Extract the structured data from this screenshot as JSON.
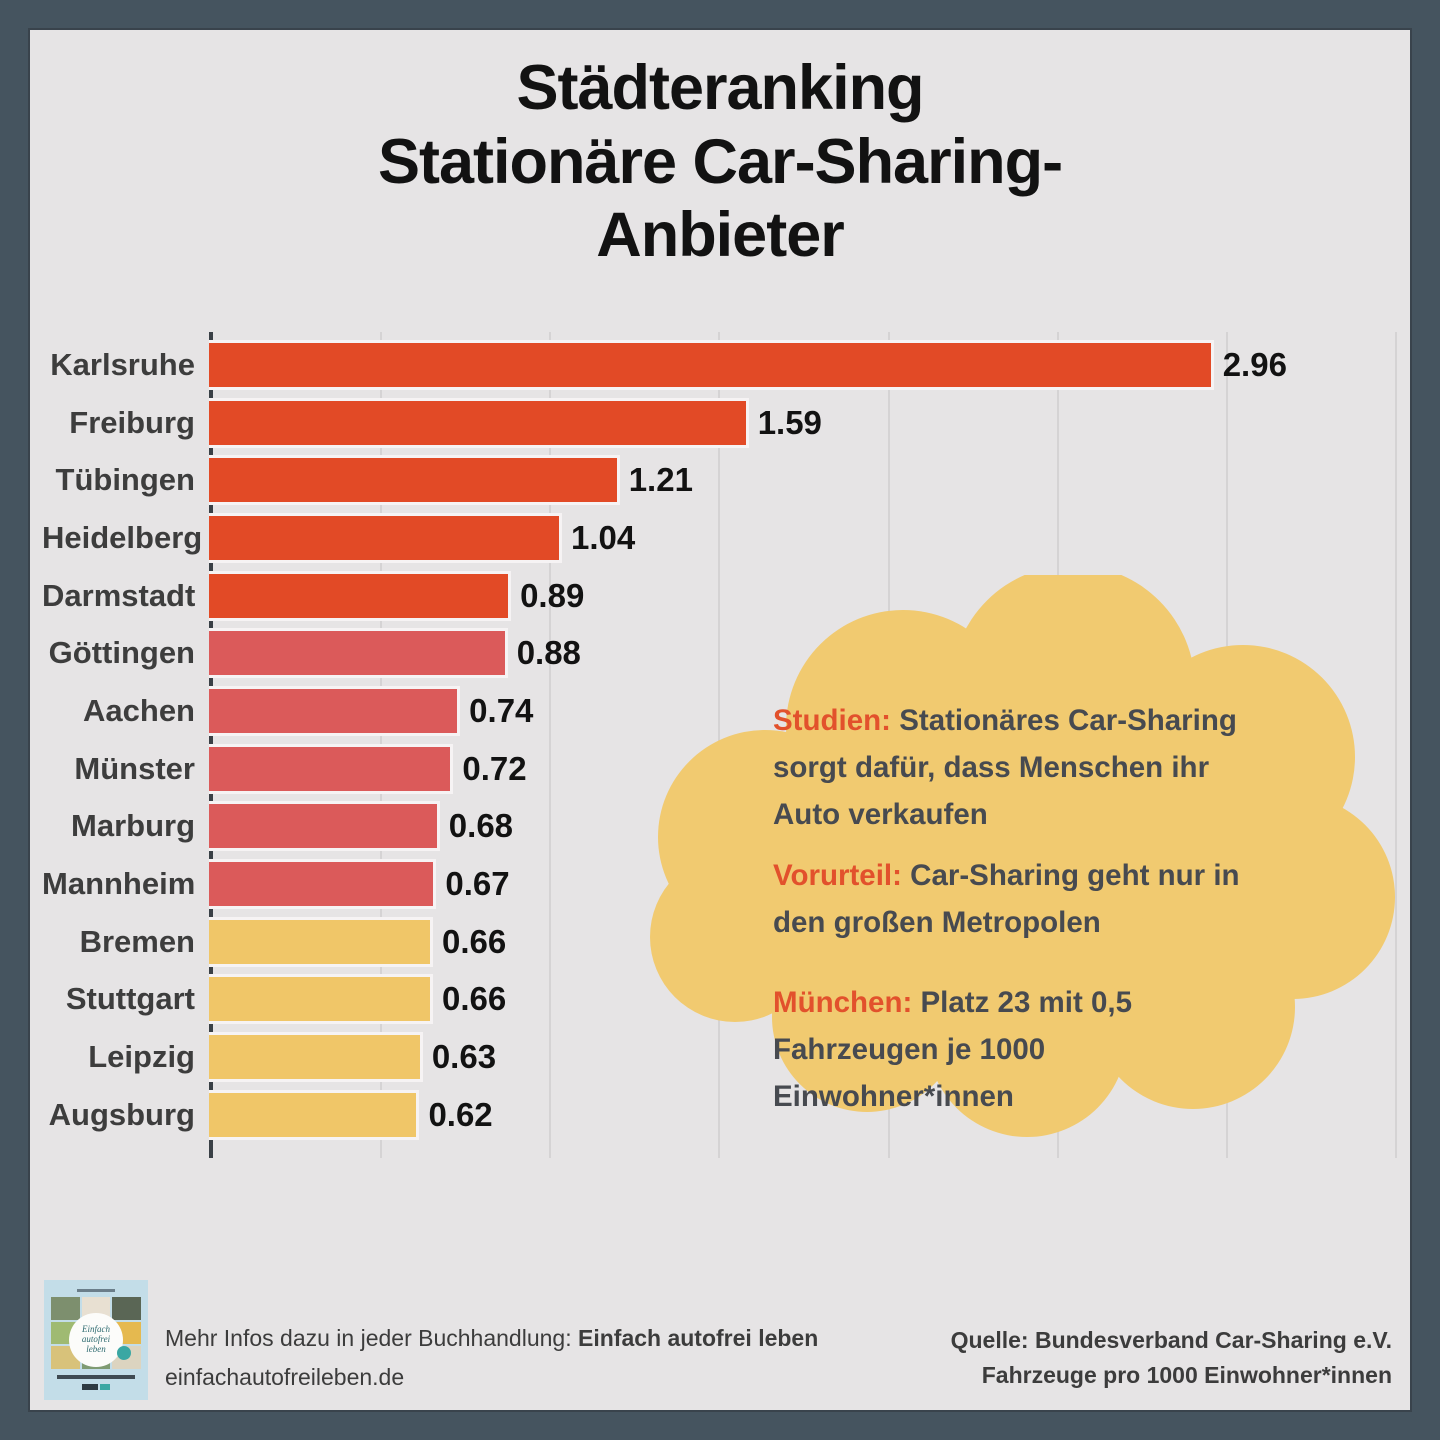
{
  "title": {
    "line1": "Städteranking",
    "line2": "Stationäre Car-Sharing-",
    "line3": "Anbieter"
  },
  "chart_data": {
    "type": "bar",
    "orientation": "horizontal",
    "title": "Städteranking Stationäre Car-Sharing-Anbieter",
    "unit_note": "Fahrzeuge pro 1000 Einwohner*innen",
    "categories": [
      "Karlsruhe",
      "Freiburg",
      "Tübingen",
      "Heidelberg",
      "Darmstadt",
      "Göttingen",
      "Aachen",
      "Münster",
      "Marburg",
      "Mannheim",
      "Bremen",
      "Stuttgart",
      "Leipzig",
      "Augsburg"
    ],
    "values": [
      2.96,
      1.59,
      1.21,
      1.04,
      0.89,
      0.88,
      0.74,
      0.72,
      0.68,
      0.67,
      0.66,
      0.66,
      0.63,
      0.62
    ],
    "value_labels": [
      "2.96",
      "1.59",
      "1.21",
      "1.04",
      "0.89",
      "0.88",
      "0.74",
      "0.72",
      "0.68",
      "0.67",
      "0.66",
      "0.66",
      "0.63",
      "0.62"
    ],
    "bar_colors": [
      "#e24a26",
      "#e24a26",
      "#e24a26",
      "#e24a26",
      "#e24a26",
      "#db5a5a",
      "#db5a5a",
      "#db5a5a",
      "#db5a5a",
      "#db5a5a",
      "#f0c668",
      "#f0c668",
      "#f0c668",
      "#f0c668"
    ],
    "xlim": [
      0,
      3.5
    ],
    "grid": true,
    "gridline_step": 0.5,
    "legend": "none"
  },
  "callout": {
    "bg_color": "#f1ca70",
    "keyword_color": "#e2512c",
    "items": [
      {
        "keyword": "Studien:",
        "text": "Stationäres Car-Sharing sorgt dafür, dass Menschen ihr Auto verkaufen"
      },
      {
        "keyword": "Vorurteil:",
        "text": "Car-Sharing geht nur in den großen Metropolen"
      },
      {
        "keyword": "München:",
        "text": "Platz 23 mit 0,5 Fahrzeugen je 1000 Einwohner*innen"
      }
    ]
  },
  "footer": {
    "left_line1_prefix": "Mehr Infos dazu in jeder Buchhandlung: ",
    "left_line1_bold": "Einfach autofrei leben",
    "left_line2": "einfachautofreileben.de",
    "right_line1": "Quelle: Bundesverband Car-Sharing e.V.",
    "right_line2": "Fahrzeuge pro 1000 Einwohner*innen",
    "book_cover_title": "Einfach autofrei leben",
    "book_cover_tile_colors": [
      "#7d8f6e",
      "#e8e0d2",
      "#5a6655",
      "#9fba72",
      "#f2eee4",
      "#e5b94f",
      "#d8c27a",
      "#7f9b72",
      "#dcd4c0"
    ]
  },
  "colors": {
    "frame": "#45545f",
    "panel_bg": "#e6e4e5",
    "gridline": "#d5d3d4",
    "axis": "#3a4046",
    "bar_group_orange": "#e24a26",
    "bar_group_red": "#db5a5a",
    "bar_group_yellow": "#f0c668"
  }
}
